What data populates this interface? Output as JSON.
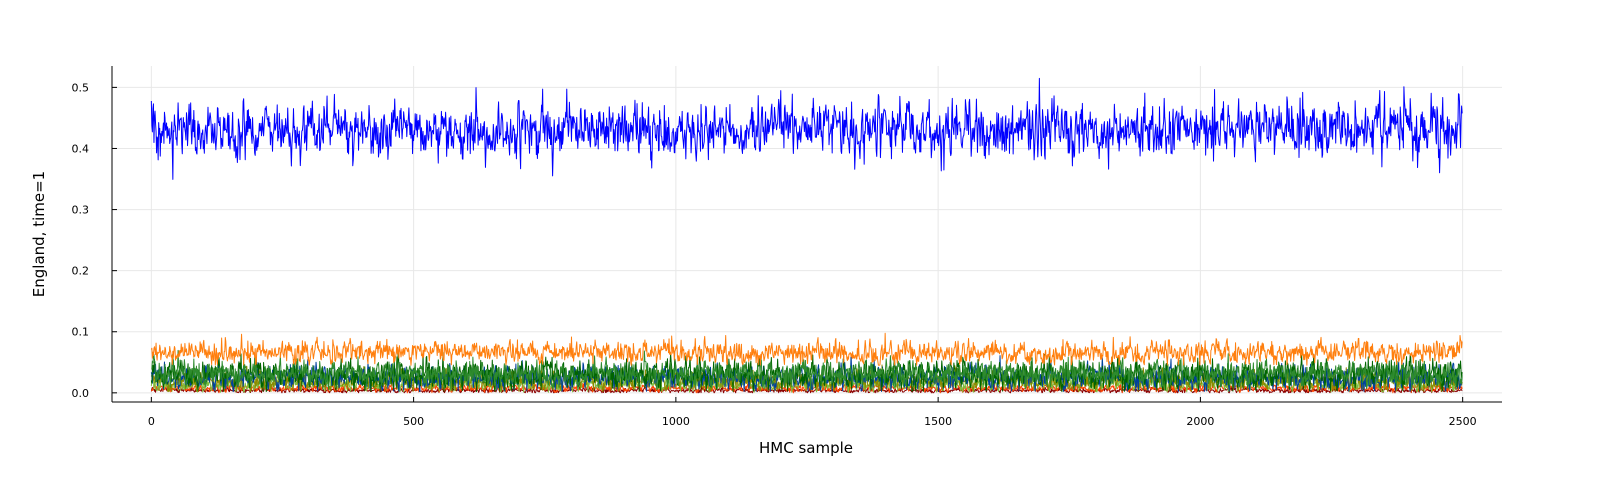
{
  "chart_data": {
    "type": "line",
    "title": "",
    "xlabel": "HMC sample",
    "ylabel": "England, time=1",
    "xlim": [
      -75,
      2575
    ],
    "ylim": [
      -0.015,
      0.535
    ],
    "xticks": [
      0,
      500,
      1000,
      1500,
      2000,
      2500
    ],
    "xtick_labels": [
      "0",
      "500",
      "1000",
      "1500",
      "2000",
      "2500"
    ],
    "yticks": [
      0.0,
      0.1,
      0.2,
      0.3,
      0.4,
      0.5
    ],
    "ytick_labels": [
      "0.0",
      "0.1",
      "0.2",
      "0.3",
      "0.4",
      "0.5"
    ],
    "grid": true,
    "legend": "none",
    "n_samples": 2500,
    "series": [
      {
        "color": "#0000ff",
        "mean": 0.43,
        "sd": 0.022,
        "min": 0.345,
        "max": 0.515
      },
      {
        "color": "#ff7f0e",
        "mean": 0.066,
        "sd": 0.009,
        "min": 0.045,
        "max": 0.105
      },
      {
        "color": "#2e8b2e",
        "mean": 0.032,
        "sd": 0.01,
        "min": 0.005,
        "max": 0.095
      },
      {
        "color": "#006400",
        "mean": 0.03,
        "sd": 0.012,
        "min": 0.002,
        "max": 0.12
      },
      {
        "color": "#00429d",
        "mean": 0.025,
        "sd": 0.01,
        "min": 0.002,
        "max": 0.07
      },
      {
        "color": "#8b8b00",
        "mean": 0.02,
        "sd": 0.008,
        "min": 0.002,
        "max": 0.06
      },
      {
        "color": "#7fbf3f",
        "mean": 0.015,
        "sd": 0.006,
        "min": 0.001,
        "max": 0.05
      },
      {
        "color": "#ff4500",
        "mean": 0.008,
        "sd": 0.003,
        "min": 0.0,
        "max": 0.025
      },
      {
        "color": "#8b0000",
        "mean": 0.004,
        "sd": 0.002,
        "min": 0.0,
        "max": 0.015
      }
    ]
  }
}
